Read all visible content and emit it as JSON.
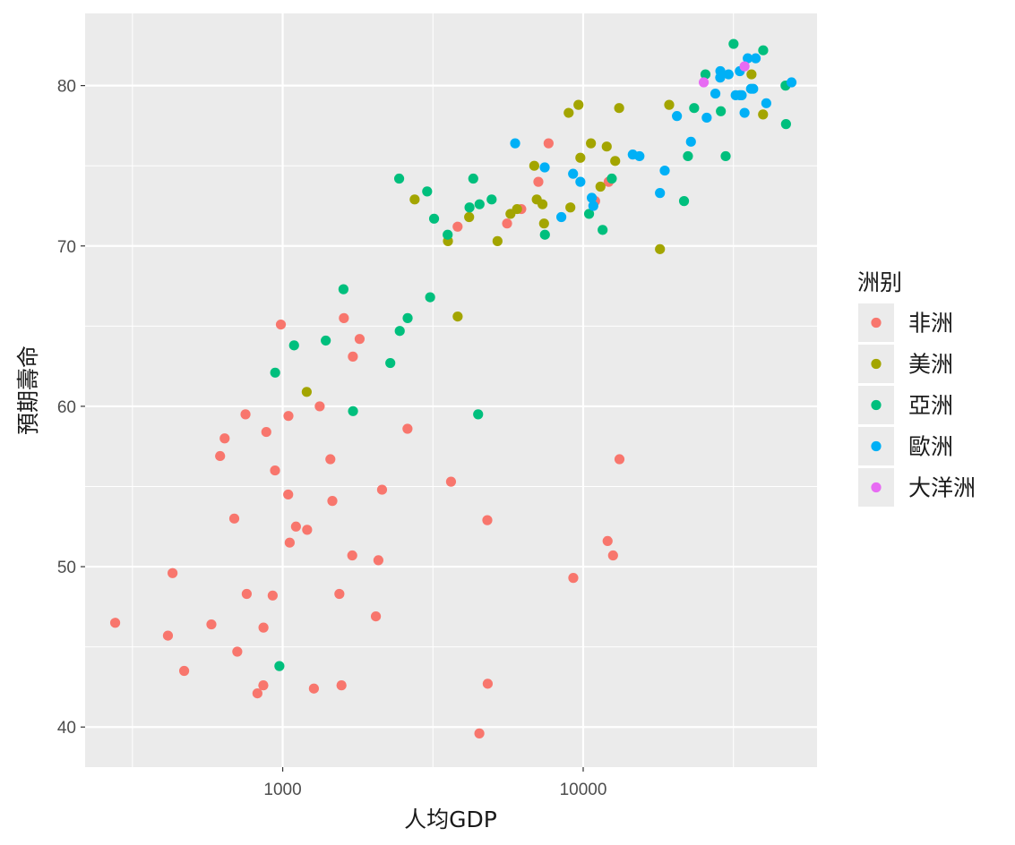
{
  "chart_data": {
    "type": "scatter",
    "title": "",
    "xlabel": "人均GDP",
    "ylabel": "預期壽命",
    "xscale": "log10",
    "xlim": [
      220,
      60000
    ],
    "ylim": [
      37.5,
      84.5
    ],
    "xticks": [
      1000,
      10000
    ],
    "xtick_labels": [
      "1000",
      "10000"
    ],
    "yticks": [
      40,
      50,
      60,
      70,
      80
    ],
    "ytick_labels": [
      "40",
      "50",
      "60",
      "70",
      "80"
    ],
    "grid": true,
    "legend": {
      "title": "洲别",
      "placement": "right",
      "entries": [
        "非洲",
        "美洲",
        "亞洲",
        "歐洲",
        "大洋洲"
      ]
    },
    "colors": {
      "非洲": "#F8766D",
      "美洲": "#A3A500",
      "亞洲": "#00BF7D",
      "歐洲": "#00B0F6",
      "大洋洲": "#E76BF3",
      "panel": "#EBEBEB",
      "grid": "#FFFFFF"
    },
    "series": [
      {
        "name": "非洲",
        "points": [
          [
            277,
            46.5
          ],
          [
            430,
            49.6
          ],
          [
            415,
            45.7
          ],
          [
            470,
            43.5
          ],
          [
            579,
            46.4
          ],
          [
            619,
            56.9
          ],
          [
            641,
            58.0
          ],
          [
            690,
            53.0
          ],
          [
            706,
            44.7
          ],
          [
            752,
            59.5
          ],
          [
            759,
            48.3
          ],
          [
            824,
            42.1
          ],
          [
            862,
            42.6
          ],
          [
            863,
            46.2
          ],
          [
            882,
            58.4
          ],
          [
            926,
            48.2
          ],
          [
            943,
            56.0
          ],
          [
            986,
            65.1
          ],
          [
            1043,
            54.5
          ],
          [
            1045,
            59.4
          ],
          [
            1055,
            51.5
          ],
          [
            1107,
            52.5
          ],
          [
            1206,
            52.3
          ],
          [
            1270,
            42.4
          ],
          [
            1328,
            60.0
          ],
          [
            1441,
            56.7
          ],
          [
            1463,
            54.1
          ],
          [
            1544,
            48.3
          ],
          [
            1569,
            42.6
          ],
          [
            1598,
            65.5
          ],
          [
            1704,
            50.7
          ],
          [
            1712,
            63.1
          ],
          [
            1803,
            64.2
          ],
          [
            2042,
            46.9
          ],
          [
            2082,
            50.4
          ],
          [
            2141,
            54.8
          ],
          [
            2602,
            58.6
          ],
          [
            3632,
            55.3
          ],
          [
            3820,
            71.2
          ],
          [
            4513,
            39.6
          ],
          [
            4797,
            52.9
          ],
          [
            4811,
            42.7
          ],
          [
            5581,
            71.4
          ],
          [
            6223,
            72.3
          ],
          [
            7093,
            74.0
          ],
          [
            7670,
            76.4
          ],
          [
            9270,
            49.3
          ],
          [
            10957,
            72.8
          ],
          [
            12057,
            51.6
          ],
          [
            12154,
            74.0
          ],
          [
            12570,
            50.7
          ],
          [
            13206,
            56.7
          ]
        ]
      },
      {
        "name": "美洲",
        "points": [
          [
            1202,
            60.9
          ],
          [
            2749,
            72.9
          ],
          [
            3548,
            70.3
          ],
          [
            3822,
            65.6
          ],
          [
            4173,
            71.8
          ],
          [
            5186,
            70.3
          ],
          [
            5728,
            72.0
          ],
          [
            6025,
            72.3
          ],
          [
            6873,
            75.0
          ],
          [
            7006,
            72.9
          ],
          [
            7321,
            72.6
          ],
          [
            7409,
            71.4
          ],
          [
            8948,
            78.3
          ],
          [
            9065,
            72.4
          ],
          [
            9646,
            78.8
          ],
          [
            9786,
            75.5
          ],
          [
            10611,
            76.4
          ],
          [
            11415,
            73.7
          ],
          [
            11977,
            76.2
          ],
          [
            12779,
            75.3
          ],
          [
            13172,
            78.6
          ],
          [
            18009,
            69.8
          ],
          [
            19329,
            78.8
          ],
          [
            36319,
            80.7
          ],
          [
            39677,
            78.2
          ]
        ]
      },
      {
        "name": "亞洲",
        "points": [
          [
            975,
            43.8
          ],
          [
            944,
            62.1
          ],
          [
            1091,
            63.8
          ],
          [
            1391,
            64.1
          ],
          [
            1593,
            67.3
          ],
          [
            1714,
            59.7
          ],
          [
            2281,
            62.7
          ],
          [
            2452,
            64.7
          ],
          [
            2441,
            74.2
          ],
          [
            2605,
            65.5
          ],
          [
            3025,
            73.4
          ],
          [
            3095,
            66.8
          ],
          [
            3190,
            71.7
          ],
          [
            3540,
            70.7
          ],
          [
            4185,
            72.4
          ],
          [
            4471,
            59.5
          ],
          [
            4519,
            72.6
          ],
          [
            4959,
            72.9
          ],
          [
            4307,
            74.2
          ],
          [
            7458,
            70.7
          ],
          [
            10461,
            72.0
          ],
          [
            11606,
            71.0
          ],
          [
            12452,
            74.2
          ],
          [
            21655,
            72.8
          ],
          [
            22316,
            75.6
          ],
          [
            23403,
            78.6
          ],
          [
            25523,
            80.7
          ],
          [
            28718,
            78.4
          ],
          [
            29796,
            75.6
          ],
          [
            31656,
            82.6
          ],
          [
            39725,
            82.2
          ],
          [
            47143,
            80.0
          ],
          [
            47307,
            77.6
          ]
        ]
      },
      {
        "name": "歐洲",
        "points": [
          [
            5937,
            76.4
          ],
          [
            7446,
            74.9
          ],
          [
            8458,
            71.8
          ],
          [
            9254,
            74.5
          ],
          [
            9787,
            74.0
          ],
          [
            10681,
            73.0
          ],
          [
            10808,
            72.5
          ],
          [
            14619,
            75.7
          ],
          [
            15390,
            75.6
          ],
          [
            18008,
            73.3
          ],
          [
            18679,
            74.7
          ],
          [
            20510,
            78.1
          ],
          [
            22834,
            76.5
          ],
          [
            25768,
            78.0
          ],
          [
            27538,
            79.5
          ],
          [
            28570,
            80.5
          ],
          [
            28605,
            80.9
          ],
          [
            30470,
            80.7
          ],
          [
            32170,
            79.4
          ],
          [
            33203,
            80.9
          ],
          [
            33208,
            79.4
          ],
          [
            33693,
            79.4
          ],
          [
            34435,
            78.3
          ],
          [
            35278,
            81.7
          ],
          [
            36180,
            79.8
          ],
          [
            36798,
            79.8
          ],
          [
            37506,
            81.7
          ],
          [
            40676,
            78.9
          ],
          [
            49357,
            80.2
          ]
        ]
      },
      {
        "name": "大洋洲",
        "points": [
          [
            25185,
            80.2
          ],
          [
            34435,
            81.2
          ]
        ]
      }
    ]
  }
}
